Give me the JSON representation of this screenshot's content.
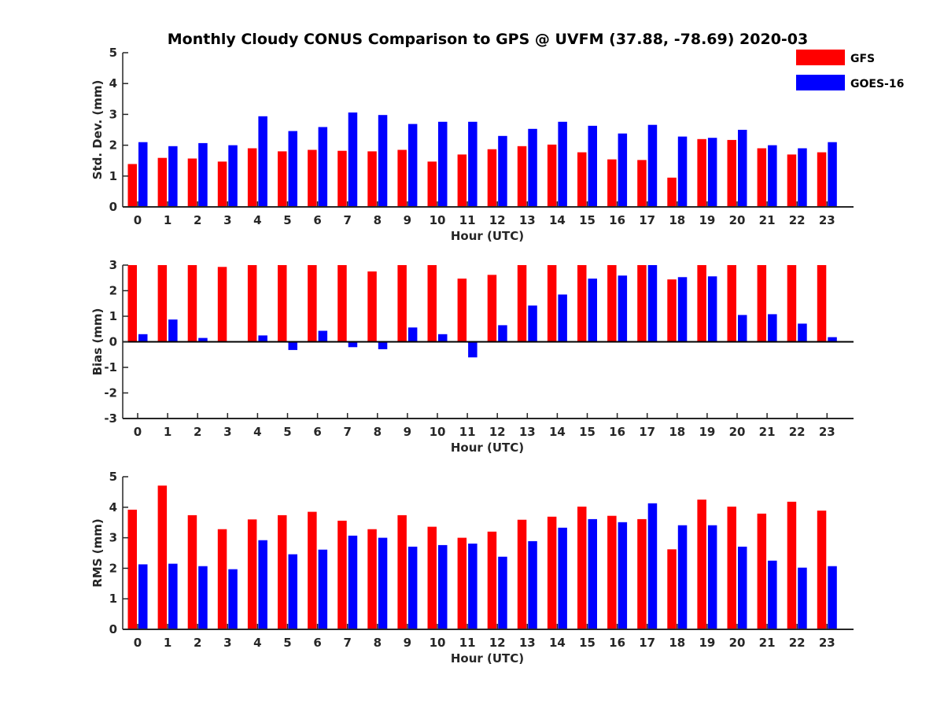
{
  "figure": {
    "title": "Monthly Cloudy CONUS Comparison to GPS @ UVFM (37.88, -78.69) 2020-03"
  },
  "legend": {
    "placement": "top-right",
    "items": [
      {
        "name": "GFS",
        "color": "#ff0000"
      },
      {
        "name": "GOES-16",
        "color": "#0000ff"
      }
    ]
  },
  "chart_data": [
    {
      "type": "bar",
      "title": "Monthly Cloudy CONUS Comparison to GPS @ UVFM (37.88, -78.69) 2020-03",
      "xlabel": "Hour (UTC)",
      "ylabel": "Std. Dev. (mm)",
      "ylim": [
        0,
        5
      ],
      "yticks": [
        "0",
        "1",
        "2",
        "3",
        "4",
        "5"
      ],
      "categories": [
        "0",
        "1",
        "2",
        "3",
        "4",
        "5",
        "6",
        "7",
        "8",
        "9",
        "10",
        "11",
        "12",
        "13",
        "14",
        "15",
        "16",
        "17",
        "18",
        "19",
        "20",
        "21",
        "22",
        "23"
      ],
      "grid": false,
      "series": [
        {
          "name": "GFS",
          "color": "#ff0000",
          "values": [
            1.39,
            1.59,
            1.57,
            1.47,
            1.9,
            1.8,
            1.85,
            1.82,
            1.8,
            1.85,
            1.47,
            1.7,
            1.87,
            1.97,
            2.02,
            1.77,
            1.54,
            1.52,
            0.95,
            2.2,
            2.17,
            1.9,
            1.7,
            1.77
          ]
        },
        {
          "name": "GOES-16",
          "color": "#0000ff",
          "values": [
            2.1,
            1.97,
            2.07,
            2.0,
            2.94,
            2.46,
            2.59,
            3.06,
            2.98,
            2.69,
            2.76,
            2.76,
            2.3,
            2.53,
            2.76,
            2.63,
            2.38,
            2.66,
            2.28,
            2.24,
            2.5,
            2.0,
            1.9,
            2.1
          ]
        }
      ]
    },
    {
      "type": "bar",
      "xlabel": "Hour (UTC)",
      "ylabel": "Bias (mm)",
      "ylim": [
        -3,
        3
      ],
      "yticks": [
        "-3",
        "-2",
        "-1",
        "0",
        "1",
        "2",
        "3"
      ],
      "categories": [
        "0",
        "1",
        "2",
        "3",
        "4",
        "5",
        "6",
        "7",
        "8",
        "9",
        "10",
        "11",
        "12",
        "13",
        "14",
        "15",
        "16",
        "17",
        "18",
        "19",
        "20",
        "21",
        "22",
        "23"
      ],
      "grid": false,
      "zero_line": true,
      "series": [
        {
          "name": "GFS",
          "color": "#ff0000",
          "values": [
            3.0,
            3.0,
            3.0,
            2.93,
            3.0,
            3.0,
            3.0,
            3.0,
            2.75,
            3.0,
            3.0,
            2.47,
            2.62,
            3.0,
            3.0,
            3.0,
            3.0,
            3.0,
            2.44,
            3.0,
            3.0,
            3.0,
            3.0,
            3.0
          ]
        },
        {
          "name": "GOES-16",
          "color": "#0000ff",
          "values": [
            0.3,
            0.87,
            0.15,
            0.0,
            0.25,
            -0.32,
            0.43,
            -0.21,
            -0.29,
            0.56,
            0.3,
            -0.61,
            0.65,
            1.42,
            1.85,
            2.47,
            2.59,
            3.0,
            2.53,
            2.56,
            1.05,
            1.08,
            0.71,
            0.18
          ]
        }
      ]
    },
    {
      "type": "bar",
      "xlabel": "Hour (UTC)",
      "ylabel": "RMS (mm)",
      "ylim": [
        0,
        5
      ],
      "yticks": [
        "0",
        "1",
        "2",
        "3",
        "4",
        "5"
      ],
      "categories": [
        "0",
        "1",
        "2",
        "3",
        "4",
        "5",
        "6",
        "7",
        "8",
        "9",
        "10",
        "11",
        "12",
        "13",
        "14",
        "15",
        "16",
        "17",
        "18",
        "19",
        "20",
        "21",
        "22",
        "23"
      ],
      "grid": false,
      "series": [
        {
          "name": "GFS",
          "color": "#ff0000",
          "values": [
            3.92,
            4.71,
            3.74,
            3.28,
            3.6,
            3.74,
            3.85,
            3.56,
            3.28,
            3.74,
            3.36,
            3.0,
            3.2,
            3.59,
            3.69,
            4.02,
            3.72,
            3.61,
            2.62,
            4.25,
            4.02,
            3.79,
            4.18,
            3.89
          ]
        },
        {
          "name": "GOES-16",
          "color": "#0000ff",
          "values": [
            2.13,
            2.15,
            2.07,
            1.97,
            2.92,
            2.46,
            2.61,
            3.07,
            3.0,
            2.71,
            2.76,
            2.81,
            2.38,
            2.89,
            3.33,
            3.61,
            3.51,
            4.13,
            3.41,
            3.41,
            2.71,
            2.25,
            2.02,
            2.07
          ]
        }
      ]
    }
  ]
}
